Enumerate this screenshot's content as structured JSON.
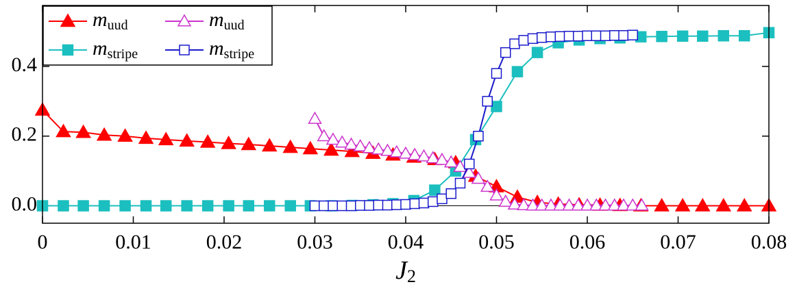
{
  "chart_data": {
    "type": "line",
    "x_label": "J",
    "x_label_sub": "2",
    "xlim": [
      0,
      0.08
    ],
    "ylim": [
      -0.05,
      0.575
    ],
    "xticks": [
      0,
      0.01,
      0.02,
      0.03,
      0.04,
      0.05,
      0.06,
      0.07,
      0.08
    ],
    "yticks": [
      {
        "value": 0,
        "label": "0.0"
      },
      {
        "value": 0.2,
        "label": "0.2"
      },
      {
        "value": 0.4,
        "label": "0.4"
      }
    ],
    "zero_line": true,
    "legend": "upper left",
    "series": [
      {
        "name": "m",
        "name_sub": "uud",
        "color": "#ff0000",
        "marker": "triangle",
        "filled": true,
        "x": [
          0,
          0.0023,
          0.0045,
          0.0068,
          0.0091,
          0.0114,
          0.0136,
          0.0159,
          0.0182,
          0.0205,
          0.0227,
          0.025,
          0.0273,
          0.0295,
          0.0318,
          0.0341,
          0.0364,
          0.0386,
          0.0409,
          0.0432,
          0.0455,
          0.0477,
          0.05,
          0.0523,
          0.0545,
          0.0568,
          0.0591,
          0.0614,
          0.0636,
          0.0659,
          0.0682,
          0.0705,
          0.0727,
          0.075,
          0.0773,
          0.08
        ],
        "values": [
          0.275,
          0.213,
          0.211,
          0.203,
          0.2,
          0.194,
          0.19,
          0.186,
          0.183,
          0.179,
          0.176,
          0.172,
          0.168,
          0.164,
          0.16,
          0.156,
          0.151,
          0.146,
          0.14,
          0.133,
          0.124,
          0.085,
          0.055,
          0.025,
          0.01,
          0.005,
          0.003,
          0.002,
          0.001,
          0,
          0,
          0,
          0,
          0,
          0,
          0
        ]
      },
      {
        "name": "m",
        "name_sub": "stripe",
        "color": "#1cbfbf",
        "marker": "square",
        "filled": true,
        "x": [
          0,
          0.0023,
          0.0045,
          0.0068,
          0.0091,
          0.0114,
          0.0136,
          0.0159,
          0.0182,
          0.0205,
          0.0227,
          0.025,
          0.0273,
          0.0295,
          0.0318,
          0.0341,
          0.0364,
          0.0386,
          0.0409,
          0.0432,
          0.0455,
          0.0477,
          0.05,
          0.0523,
          0.0545,
          0.0568,
          0.0591,
          0.0614,
          0.0636,
          0.0659,
          0.0682,
          0.0705,
          0.0727,
          0.075,
          0.0773,
          0.08
        ],
        "values": [
          0,
          0,
          0,
          0,
          0,
          0,
          0,
          0,
          0,
          0,
          0,
          0,
          0,
          0,
          0,
          0.001,
          0.003,
          0.006,
          0.015,
          0.045,
          0.1,
          0.19,
          0.285,
          0.385,
          0.44,
          0.468,
          0.476,
          0.48,
          0.482,
          0.485,
          0.486,
          0.487,
          0.487,
          0.488,
          0.488,
          0.497
        ]
      },
      {
        "name": "m",
        "name_sub": "uud",
        "color": "#cc33cc",
        "marker": "triangle",
        "filled": false,
        "x": [
          0.03,
          0.031,
          0.032,
          0.033,
          0.034,
          0.035,
          0.036,
          0.037,
          0.038,
          0.039,
          0.04,
          0.041,
          0.042,
          0.043,
          0.044,
          0.045,
          0.046,
          0.047,
          0.048,
          0.049,
          0.05,
          0.051,
          0.052,
          0.053,
          0.054,
          0.055,
          0.056,
          0.057,
          0.058,
          0.059,
          0.06,
          0.061,
          0.062,
          0.063,
          0.064,
          0.065,
          0.066
        ],
        "values": [
          0.25,
          0.2,
          0.19,
          0.182,
          0.176,
          0.171,
          0.166,
          0.162,
          0.158,
          0.154,
          0.15,
          0.146,
          0.142,
          0.137,
          0.132,
          0.125,
          0.112,
          0.095,
          0.078,
          0.055,
          0.03,
          0.012,
          0.004,
          0.002,
          0.001,
          0.001,
          0.001,
          0.001,
          0.001,
          0.001,
          0.001,
          0.001,
          0.001,
          0.001,
          0.001,
          0.001,
          0.001
        ]
      },
      {
        "name": "m",
        "name_sub": "stripe",
        "color": "#1a1acc",
        "marker": "square",
        "filled": false,
        "x": [
          0.03,
          0.031,
          0.032,
          0.033,
          0.034,
          0.035,
          0.036,
          0.037,
          0.038,
          0.039,
          0.04,
          0.041,
          0.042,
          0.043,
          0.044,
          0.045,
          0.046,
          0.047,
          0.048,
          0.049,
          0.05,
          0.051,
          0.052,
          0.053,
          0.054,
          0.055,
          0.056,
          0.057,
          0.058,
          0.059,
          0.06,
          0.061,
          0.062,
          0.063,
          0.064,
          0.065
        ],
        "values": [
          0,
          0,
          0,
          0,
          0,
          0.001,
          0.001,
          0.002,
          0.002,
          0.003,
          0.004,
          0.006,
          0.008,
          0.012,
          0.02,
          0.035,
          0.065,
          0.12,
          0.2,
          0.3,
          0.38,
          0.44,
          0.465,
          0.475,
          0.48,
          0.483,
          0.485,
          0.486,
          0.487,
          0.487,
          0.488,
          0.488,
          0.488,
          0.489,
          0.489,
          0.49
        ]
      }
    ]
  }
}
